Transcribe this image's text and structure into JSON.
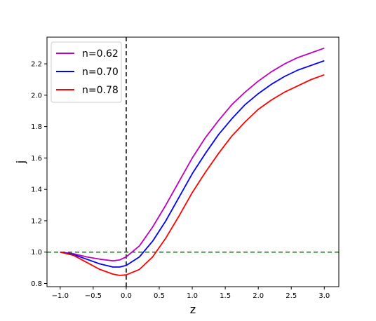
{
  "chart_data": {
    "type": "line",
    "xlabel": "z",
    "ylabel": "j",
    "xlim": [
      -1.2,
      3.22
    ],
    "ylim": [
      0.78,
      2.37
    ],
    "xticks": [
      -1.0,
      -0.5,
      0.0,
      0.5,
      1.0,
      1.5,
      2.0,
      2.5,
      3.0
    ],
    "xtick_labels": [
      "−1.0",
      "−0.5",
      "0.0",
      "0.5",
      "1.0",
      "1.5",
      "2.0",
      "2.5",
      "3.0"
    ],
    "yticks": [
      0.8,
      1.0,
      1.2,
      1.4,
      1.6,
      1.8,
      2.0,
      2.2
    ],
    "ytick_labels": [
      "0.8",
      "1.0",
      "1.2",
      "1.4",
      "1.6",
      "1.8",
      "2.0",
      "2.2"
    ],
    "legend_position": "top-left",
    "series": [
      {
        "name": "n=0.62",
        "color": "#bf00bf",
        "x": [
          -1.0,
          -0.8,
          -0.6,
          -0.4,
          -0.2,
          -0.1,
          0.0,
          0.2,
          0.4,
          0.6,
          0.8,
          1.0,
          1.2,
          1.4,
          1.6,
          1.8,
          2.0,
          2.2,
          2.4,
          2.6,
          2.8,
          3.0
        ],
        "y": [
          1.0,
          0.99,
          0.97,
          0.955,
          0.945,
          0.95,
          0.97,
          1.04,
          1.16,
          1.3,
          1.45,
          1.6,
          1.73,
          1.84,
          1.94,
          2.02,
          2.09,
          2.15,
          2.2,
          2.24,
          2.27,
          2.3
        ]
      },
      {
        "name": "n=0.70",
        "color": "#0000ff",
        "x": [
          -1.0,
          -0.8,
          -0.6,
          -0.4,
          -0.2,
          -0.1,
          0.0,
          0.2,
          0.4,
          0.6,
          0.8,
          1.0,
          1.2,
          1.4,
          1.6,
          1.8,
          2.0,
          2.2,
          2.4,
          2.6,
          2.8,
          3.0
        ],
        "y": [
          1.0,
          0.985,
          0.955,
          0.925,
          0.905,
          0.905,
          0.915,
          0.97,
          1.07,
          1.2,
          1.35,
          1.5,
          1.63,
          1.75,
          1.85,
          1.94,
          2.01,
          2.07,
          2.12,
          2.16,
          2.19,
          2.22
        ]
      },
      {
        "name": "n=0.78",
        "color": "#ff0000",
        "x": [
          -1.0,
          -0.8,
          -0.6,
          -0.4,
          -0.2,
          -0.1,
          0.0,
          0.2,
          0.4,
          0.6,
          0.8,
          1.0,
          1.2,
          1.4,
          1.6,
          1.8,
          2.0,
          2.2,
          2.4,
          2.6,
          2.8,
          3.0
        ],
        "y": [
          1.0,
          0.98,
          0.935,
          0.89,
          0.86,
          0.852,
          0.855,
          0.89,
          0.97,
          1.09,
          1.23,
          1.38,
          1.51,
          1.63,
          1.74,
          1.83,
          1.91,
          1.97,
          2.02,
          2.06,
          2.1,
          2.13
        ]
      }
    ],
    "reference_lines": [
      {
        "orientation": "horizontal",
        "value": 1.0,
        "color": "#008000",
        "style": "dashed"
      },
      {
        "orientation": "vertical",
        "value": 0.0,
        "color": "#000000",
        "style": "dashed"
      }
    ]
  }
}
